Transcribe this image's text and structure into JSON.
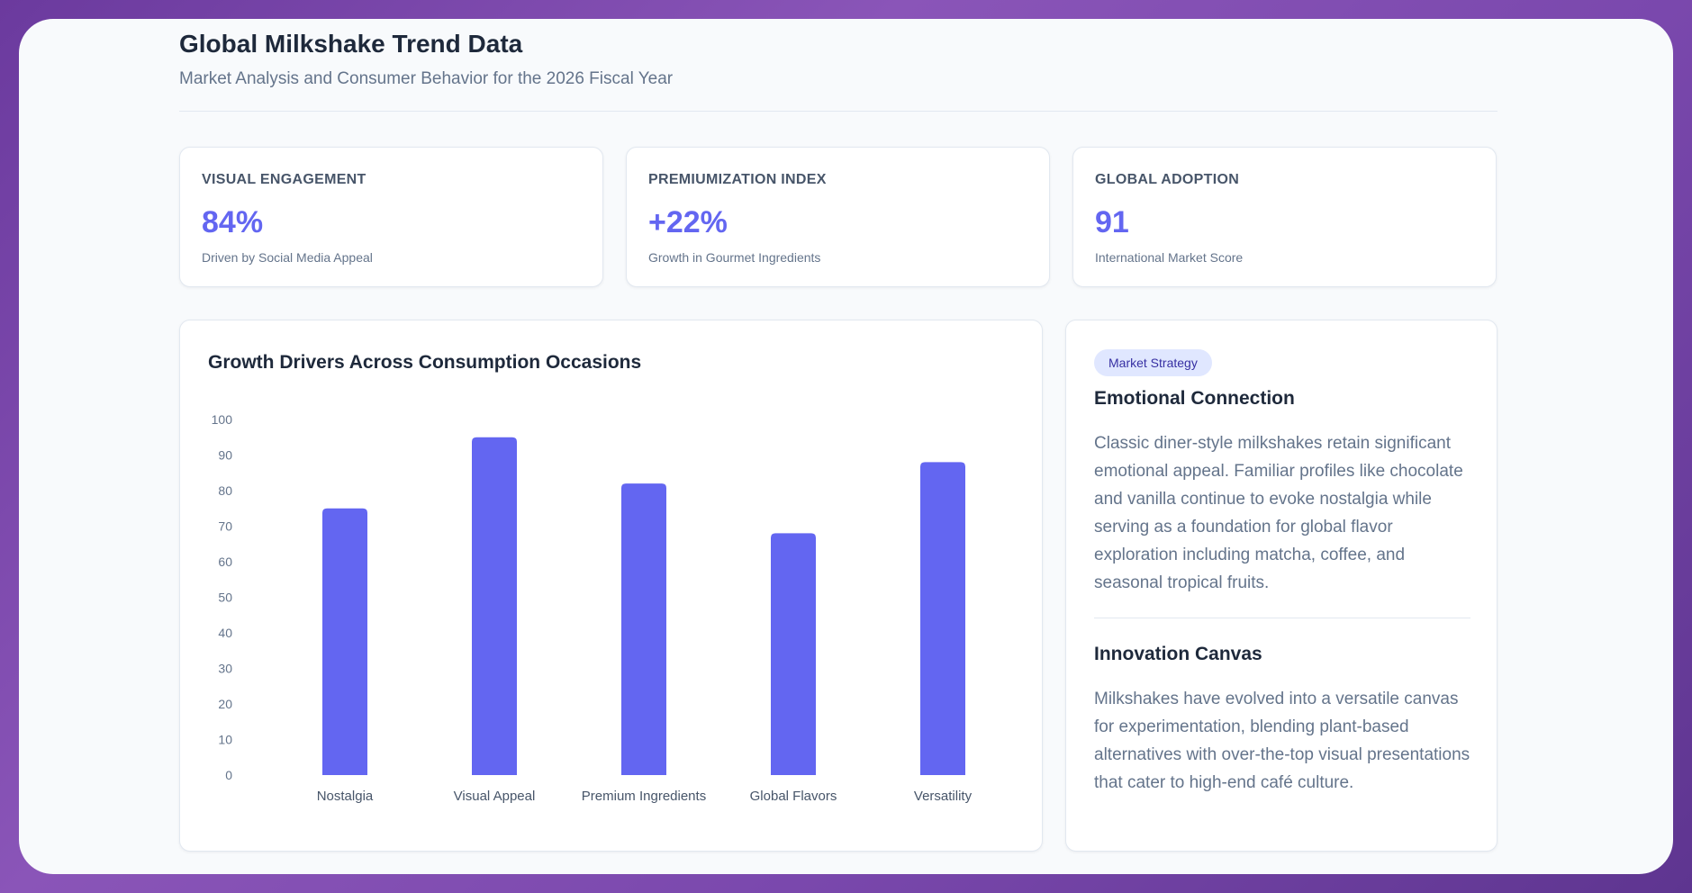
{
  "header": {
    "title": "Global Milkshake Trend Data",
    "subtitle": "Market Analysis and Consumer Behavior for the 2026 Fiscal Year"
  },
  "kpis": [
    {
      "label": "Visual Engagement",
      "value": "84%",
      "note": "Driven by Social Media Appeal"
    },
    {
      "label": "Premiumization Index",
      "value": "+22%",
      "note": "Growth in Gourmet Ingredients"
    },
    {
      "label": "Global Adoption",
      "value": "91",
      "note": "International Market Score"
    }
  ],
  "chart_data": {
    "type": "bar",
    "title": "Growth Drivers Across Consumption Occasions",
    "categories": [
      "Nostalgia",
      "Visual Appeal",
      "Premium Ingredients",
      "Global Flavors",
      "Versatility"
    ],
    "values": [
      75,
      95,
      82,
      68,
      88
    ],
    "ylim": [
      0,
      100
    ],
    "yticks": [
      0,
      10,
      20,
      30,
      40,
      50,
      60,
      70,
      80,
      90,
      100
    ],
    "xlabel": "",
    "ylabel": "",
    "color": "#6366f1",
    "grid": false,
    "legend": false
  },
  "side_panel": {
    "badge": "Market Strategy",
    "sections": [
      {
        "heading": "Emotional Connection",
        "text": "Classic diner-style milkshakes retain significant emotional appeal. Familiar profiles like chocolate and vanilla continue to evoke nostalgia while serving as a foundation for global flavor exploration including matcha, coffee, and seasonal tropical fruits."
      },
      {
        "heading": "Innovation Canvas",
        "text": "Milkshakes have evolved into a versatile canvas for experimentation, blending plant-based alternatives with over-the-top visual presentations that cater to high-end café culture."
      }
    ]
  },
  "colors": {
    "accent": "#6366f1",
    "badge_bg": "#e0e7ff",
    "badge_text": "#3730a3",
    "heading": "#1e293b",
    "muted": "#64748b"
  }
}
